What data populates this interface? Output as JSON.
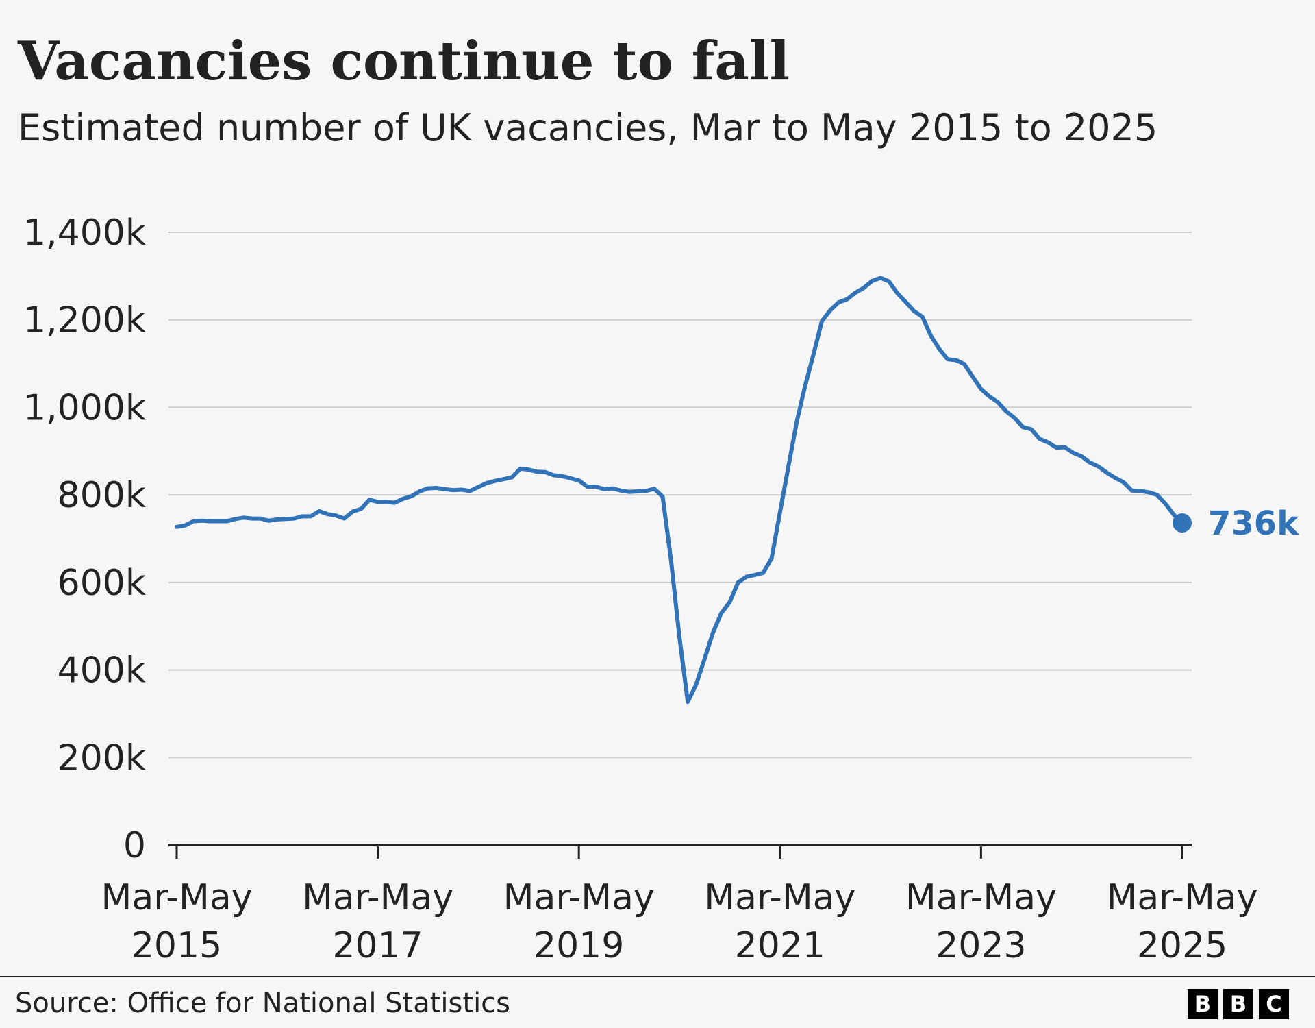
{
  "header": {
    "title": "Vacancies continue to fall",
    "subtitle": "Estimated number of UK vacancies, Mar to May 2015 to 2025"
  },
  "footer": {
    "source": "Source: Office for National Statistics",
    "logo_letters": [
      "B",
      "B",
      "C"
    ]
  },
  "colors": {
    "line": "#3273b8",
    "text": "#222222",
    "grid": "#cccccc",
    "axis": "#222222",
    "background": "#f6f6f6"
  },
  "chart_data": {
    "type": "line",
    "title": "Vacancies continue to fall",
    "subtitle": "Estimated number of UK vacancies, Mar to May 2015 to 2025",
    "xlabel": "",
    "ylabel": "",
    "grid": true,
    "ylim": [
      0,
      1400
    ],
    "y_unit": "thousands",
    "y_ticks": [
      {
        "value": 0,
        "label": "0"
      },
      {
        "value": 200,
        "label": "200k"
      },
      {
        "value": 400,
        "label": "400k"
      },
      {
        "value": 600,
        "label": "600k"
      },
      {
        "value": 800,
        "label": "800k"
      },
      {
        "value": 1000,
        "label": "1,000k"
      },
      {
        "value": 1200,
        "label": "1,200k"
      },
      {
        "value": 1400,
        "label": "1,400k"
      }
    ],
    "x_range": [
      "Mar-May 2015",
      "Mar-May 2025"
    ],
    "x_ticks": [
      {
        "period": "Mar-May 2015",
        "line1": "Mar-May",
        "line2": "2015"
      },
      {
        "period": "Mar-May 2017",
        "line1": "Mar-May",
        "line2": "2017"
      },
      {
        "period": "Mar-May 2019",
        "line1": "Mar-May",
        "line2": "2019"
      },
      {
        "period": "Mar-May 2021",
        "line1": "Mar-May",
        "line2": "2021"
      },
      {
        "period": "Mar-May 2023",
        "line1": "Mar-May",
        "line2": "2023"
      },
      {
        "period": "Mar-May 2025",
        "line1": "Mar-May",
        "line2": "2025"
      }
    ],
    "end_label": "736k",
    "series": [
      {
        "x": [
          "Mar-May 2015",
          "Apr-Jun 2015",
          "May-Jul 2015",
          "Jun-Aug 2015",
          "Jul-Sep 2015",
          "Aug-Oct 2015",
          "Sep-Nov 2015",
          "Oct-Dec 2015",
          "Nov-Jan 2016",
          "Dec-Feb 2016",
          "Jan-Mar 2016",
          "Feb-Apr 2016",
          "Mar-May 2016",
          "Apr-Jun 2016",
          "May-Jul 2016",
          "Jun-Aug 2016",
          "Jul-Sep 2016",
          "Aug-Oct 2016",
          "Sep-Nov 2016",
          "Oct-Dec 2016",
          "Nov-Jan 2017",
          "Dec-Feb 2017",
          "Jan-Mar 2017",
          "Feb-Apr 2017",
          "Mar-May 2017",
          "Apr-Jun 2017",
          "May-Jul 2017",
          "Jun-Aug 2017",
          "Jul-Sep 2017",
          "Aug-Oct 2017",
          "Sep-Nov 2017",
          "Oct-Dec 2017",
          "Nov-Jan 2018",
          "Dec-Feb 2018",
          "Jan-Mar 2018",
          "Feb-Apr 2018",
          "Mar-May 2018",
          "Apr-Jun 2018",
          "May-Jul 2018",
          "Jun-Aug 2018",
          "Jul-Sep 2018",
          "Aug-Oct 2018",
          "Sep-Nov 2018",
          "Oct-Dec 2018",
          "Nov-Jan 2019",
          "Dec-Feb 2019",
          "Jan-Mar 2019",
          "Feb-Apr 2019",
          "Mar-May 2019",
          "Apr-Jun 2019",
          "May-Jul 2019",
          "Jun-Aug 2019",
          "Jul-Sep 2019",
          "Aug-Oct 2019",
          "Sep-Nov 2019",
          "Oct-Dec 2019",
          "Nov-Jan 2020",
          "Dec-Feb 2020",
          "Jan-Mar 2020",
          "Feb-Apr 2020",
          "Mar-May 2020",
          "Apr-Jun 2020",
          "May-Jul 2020",
          "Jun-Aug 2020",
          "Jul-Sep 2020",
          "Aug-Oct 2020",
          "Sep-Nov 2020",
          "Oct-Dec 2020",
          "Nov-Jan 2021",
          "Dec-Feb 2021",
          "Jan-Mar 2021",
          "Feb-Apr 2021",
          "Mar-May 2021",
          "Apr-Jun 2021",
          "May-Jul 2021",
          "Jun-Aug 2021",
          "Jul-Sep 2021",
          "Aug-Oct 2021",
          "Sep-Nov 2021",
          "Oct-Dec 2021",
          "Nov-Jan 2022",
          "Dec-Feb 2022",
          "Jan-Mar 2022",
          "Feb-Apr 2022",
          "Mar-May 2022",
          "Apr-Jun 2022",
          "May-Jul 2022",
          "Jun-Aug 2022",
          "Jul-Sep 2022",
          "Aug-Oct 2022",
          "Sep-Nov 2022",
          "Oct-Dec 2022",
          "Nov-Jan 2023",
          "Dec-Feb 2023",
          "Jan-Mar 2023",
          "Feb-Apr 2023",
          "Mar-May 2023",
          "Apr-Jun 2023",
          "May-Jul 2023",
          "Jun-Aug 2023",
          "Jul-Sep 2023",
          "Aug-Oct 2023",
          "Sep-Nov 2023",
          "Oct-Dec 2023",
          "Nov-Jan 2024",
          "Dec-Feb 2024",
          "Jan-Mar 2024",
          "Feb-Apr 2024",
          "Mar-May 2024",
          "Apr-Jun 2024",
          "May-Jul 2024",
          "Jun-Aug 2024",
          "Jul-Sep 2024",
          "Aug-Oct 2024",
          "Sep-Nov 2024",
          "Oct-Dec 2024",
          "Nov-Jan 2025",
          "Dec-Feb 2025",
          "Jan-Mar 2025",
          "Feb-Apr 2025",
          "Mar-May 2025"
        ],
        "values": [
          727,
          730,
          740,
          741,
          740,
          740,
          740,
          745,
          748,
          746,
          746,
          741,
          744,
          745,
          746,
          751,
          751,
          763,
          756,
          753,
          746,
          762,
          768,
          789,
          784,
          784,
          782,
          791,
          797,
          808,
          815,
          816,
          813,
          811,
          812,
          809,
          818,
          827,
          832,
          836,
          840,
          860,
          858,
          853,
          852,
          845,
          843,
          838,
          833,
          819,
          819,
          813,
          815,
          810,
          807,
          808,
          809,
          814,
          796,
          650,
          475,
          327,
          367,
          425,
          485,
          530,
          555,
          600,
          613,
          617,
          622,
          655,
          760,
          864,
          967,
          1049,
          1121,
          1197,
          1222,
          1240,
          1247,
          1262,
          1273,
          1289,
          1296,
          1288,
          1261,
          1241,
          1220,
          1207,
          1164,
          1134,
          1110,
          1108,
          1099,
          1070,
          1042,
          1025,
          1012,
          991,
          976,
          955,
          950,
          928,
          920,
          908,
          909,
          896,
          888,
          874,
          865,
          851,
          839,
          829,
          810,
          809,
          806,
          800,
          780,
          755,
          736
        ]
      }
    ]
  }
}
